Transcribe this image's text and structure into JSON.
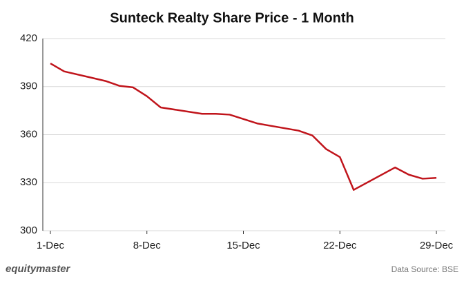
{
  "chart_data": {
    "type": "line",
    "title": "Sunteck Realty Share Price - 1 Month",
    "x": [
      1,
      2,
      5,
      6,
      7,
      8,
      9,
      12,
      13,
      14,
      16,
      19,
      20,
      21,
      22,
      23,
      26,
      27,
      28,
      29
    ],
    "series": [
      {
        "name": "Sunteck Realty",
        "color": "#c0141b",
        "values": [
          404.5,
          399.5,
          393.5,
          390.5,
          389.5,
          384,
          377,
          373,
          373,
          372.5,
          367,
          362.5,
          359.5,
          351,
          346,
          325.5,
          339.5,
          335,
          332.5,
          333
        ]
      }
    ],
    "xlim": [
      0.45,
      29.65
    ],
    "xticks": [
      {
        "value": 1,
        "label": "1-Dec"
      },
      {
        "value": 8,
        "label": "8-Dec"
      },
      {
        "value": 15,
        "label": "15-Dec"
      },
      {
        "value": 22,
        "label": "22-Dec"
      },
      {
        "value": 29,
        "label": "29-Dec"
      }
    ],
    "ylim": [
      300,
      420
    ],
    "yticks": [
      300,
      330,
      360,
      390,
      420
    ],
    "grid": true,
    "logo": "equitymaster",
    "source": "Data Source: BSE"
  }
}
